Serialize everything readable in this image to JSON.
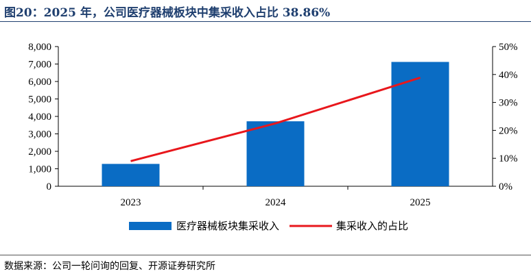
{
  "title": "图20：2025 年，公司医疗器械板块中集采收入占比 38.86%",
  "source": "数据来源：公司一轮问询的回复、开源证券研究所",
  "colors": {
    "bar": "#0a6cc4",
    "line": "#e8171c",
    "title": "#1f3f6f"
  },
  "chart_data": {
    "type": "bar",
    "categories": [
      "2023",
      "2024",
      "2025"
    ],
    "series": [
      {
        "name": "医疗器械板块集采收入",
        "type": "bar",
        "axis": "left",
        "values": [
          1280,
          3720,
          7120
        ]
      },
      {
        "name": "集采收入的占比",
        "type": "line",
        "axis": "right",
        "values": [
          9.0,
          22.5,
          38.86
        ]
      }
    ],
    "left_axis": {
      "ylim": [
        0,
        8000
      ],
      "ticks": [
        "0",
        "1,000",
        "2,000",
        "3,000",
        "4,000",
        "5,000",
        "6,000",
        "7,000",
        "8,000"
      ]
    },
    "right_axis": {
      "ylim": [
        0,
        50
      ],
      "ticks": [
        "0%",
        "10%",
        "20%",
        "30%",
        "40%",
        "50%"
      ]
    },
    "legend": {
      "position": "bottom"
    },
    "grid": false
  }
}
